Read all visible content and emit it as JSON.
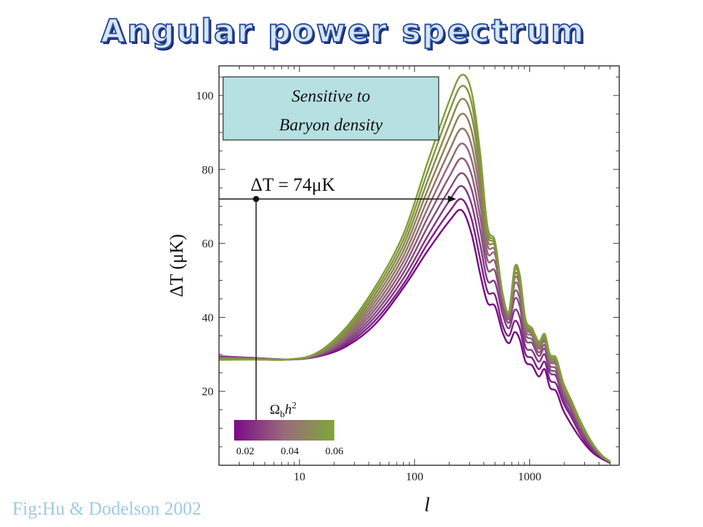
{
  "slide": {
    "title": "Angular power spectrum",
    "caption": "Fig:Hu & Dodelson 2002"
  },
  "chart_data": {
    "type": "line",
    "title": "",
    "xlabel": "l",
    "ylabel": "ΔT (μK)",
    "x_scale": "log",
    "xlim": [
      2,
      6000
    ],
    "ylim": [
      0,
      108
    ],
    "x_tick_labels": [
      "10",
      "100",
      "1000"
    ],
    "x_ticks": [
      10,
      100,
      1000
    ],
    "y_tick_labels": [
      "20",
      "40",
      "60",
      "80",
      "100"
    ],
    "y_ticks": [
      20,
      40,
      60,
      80,
      100
    ],
    "grid": false,
    "annotation_box": {
      "line1": "Sensitive to",
      "line2": "Baryon density",
      "fill": "#b7e0e3"
    },
    "equation": {
      "lhs": "ΔT",
      "eq": "=",
      "rhs": "74μK",
      "value_y": 72,
      "marker_x": 4.2,
      "arrow_to_x": 230
    },
    "colorbar": {
      "label_base": "Ω",
      "label_sub": "b",
      "label_tail": "h",
      "label_sup": "2",
      "tick_labels": [
        "0.02",
        "0.04",
        "0.06"
      ],
      "ticks": [
        0.02,
        0.04,
        0.06
      ],
      "range": [
        0.015,
        0.06
      ],
      "color_low": "#7a0c86",
      "color_mid": "#9a6a7a",
      "color_high": "#7fa63a"
    },
    "x_points": [
      2,
      4,
      8,
      14,
      25,
      45,
      80,
      130,
      200,
      255,
      310,
      370,
      430,
      500,
      580,
      660,
      740,
      820,
      920,
      1050,
      1200,
      1350,
      1500,
      1700,
      1950,
      2300,
      2800,
      3500,
      4200,
      5000
    ],
    "series": [
      {
        "omega_b": 0.015,
        "color": "#7a0c86",
        "values": [
          29.5,
          29.0,
          28.6,
          29.3,
          32.0,
          38.0,
          48.0,
          58.0,
          66.0,
          69.0,
          63.0,
          52.0,
          44.0,
          43.0,
          36.0,
          33.0,
          36.0,
          34.0,
          28.0,
          27.0,
          24.0,
          26.0,
          21.0,
          20.0,
          15.0,
          11.0,
          7.0,
          3.5,
          1.8,
          0.6
        ]
      },
      {
        "omega_b": 0.018,
        "color": "#7e2386",
        "values": [
          29.4,
          29.0,
          28.6,
          29.4,
          32.5,
          39.0,
          49.0,
          60.0,
          68.5,
          72.0,
          67.0,
          56.0,
          47.0,
          46.0,
          38.0,
          35.0,
          39.0,
          37.0,
          30.0,
          29.0,
          26.0,
          28.0,
          23.0,
          22.0,
          17.0,
          13.0,
          8.0,
          4.0,
          2.0,
          0.7
        ]
      },
      {
        "omega_b": 0.021,
        "color": "#833a84",
        "values": [
          29.3,
          28.9,
          28.6,
          29.5,
          33.0,
          40.0,
          50.5,
          62.0,
          71.5,
          75.5,
          71.0,
          60.0,
          50.0,
          49.5,
          41.0,
          37.0,
          42.0,
          40.0,
          32.0,
          31.0,
          28.0,
          30.0,
          25.0,
          24.0,
          18.0,
          14.0,
          9.0,
          4.5,
          2.2,
          0.8
        ]
      },
      {
        "omega_b": 0.024,
        "color": "#884c80",
        "values": [
          29.2,
          28.9,
          28.6,
          29.6,
          33.5,
          41.0,
          52.0,
          64.5,
          74.5,
          79.0,
          75.0,
          64.0,
          53.0,
          52.5,
          43.0,
          38.5,
          45.0,
          43.0,
          34.0,
          33.0,
          29.5,
          31.5,
          26.0,
          25.0,
          19.0,
          15.0,
          9.5,
          5.0,
          2.4,
          0.8
        ]
      },
      {
        "omega_b": 0.027,
        "color": "#8d5c7c",
        "values": [
          29.1,
          28.9,
          28.6,
          29.7,
          34.0,
          42.0,
          53.5,
          67.0,
          78.0,
          83.0,
          79.0,
          67.5,
          55.5,
          55.0,
          44.5,
          39.5,
          47.0,
          45.0,
          35.5,
          34.0,
          30.5,
          32.5,
          27.0,
          26.0,
          20.0,
          15.5,
          10.0,
          5.2,
          2.5,
          0.9
        ]
      },
      {
        "omega_b": 0.03,
        "color": "#916a77",
        "values": [
          29.0,
          28.8,
          28.6,
          29.8,
          34.5,
          43.0,
          55.0,
          69.5,
          81.5,
          87.0,
          83.0,
          71.0,
          57.5,
          57.0,
          45.5,
          40.0,
          49.0,
          47.0,
          36.5,
          35.0,
          31.5,
          33.5,
          28.0,
          27.0,
          20.5,
          16.0,
          10.5,
          5.5,
          2.6,
          0.9
        ]
      },
      {
        "omega_b": 0.034,
        "color": "#907568",
        "values": [
          28.9,
          28.8,
          28.6,
          29.9,
          35.0,
          44.0,
          56.5,
          72.0,
          85.0,
          91.0,
          87.0,
          74.0,
          59.5,
          58.0,
          46.0,
          40.5,
          50.5,
          48.5,
          37.5,
          35.5,
          32.0,
          34.0,
          28.5,
          27.5,
          21.0,
          16.5,
          10.5,
          5.5,
          2.6,
          0.9
        ]
      },
      {
        "omega_b": 0.038,
        "color": "#8f8058",
        "values": [
          28.8,
          28.7,
          28.6,
          30.0,
          35.5,
          45.0,
          58.0,
          74.5,
          88.5,
          95.0,
          91.0,
          77.0,
          61.0,
          59.0,
          46.5,
          41.0,
          51.5,
          49.5,
          38.0,
          36.0,
          32.5,
          34.5,
          29.0,
          28.0,
          21.5,
          17.0,
          11.0,
          5.8,
          2.7,
          0.9
        ]
      },
      {
        "omega_b": 0.043,
        "color": "#8a8a4a",
        "values": [
          28.7,
          28.7,
          28.6,
          30.1,
          36.0,
          46.0,
          59.5,
          77.0,
          92.0,
          99.0,
          95.0,
          80.0,
          62.5,
          59.5,
          46.5,
          41.5,
          52.5,
          50.5,
          38.5,
          36.5,
          33.0,
          35.0,
          29.5,
          28.5,
          22.0,
          17.0,
          11.0,
          5.8,
          2.7,
          0.9
        ]
      },
      {
        "omega_b": 0.048,
        "color": "#859540",
        "values": [
          28.6,
          28.6,
          28.6,
          30.2,
          36.5,
          47.0,
          61.0,
          79.5,
          95.5,
          102.5,
          98.5,
          82.5,
          63.5,
          60.0,
          46.5,
          41.5,
          53.0,
          51.0,
          39.0,
          37.0,
          33.0,
          35.0,
          29.5,
          28.5,
          22.0,
          17.5,
          11.5,
          6.0,
          2.8,
          1.0
        ]
      },
      {
        "omega_b": 0.055,
        "color": "#80a03a",
        "values": [
          28.5,
          28.6,
          28.6,
          30.3,
          37.0,
          48.0,
          62.5,
          82.0,
          98.5,
          105.5,
          101.5,
          85.0,
          64.5,
          60.5,
          46.5,
          41.5,
          53.5,
          51.5,
          39.5,
          37.0,
          33.5,
          35.5,
          30.0,
          29.0,
          22.5,
          17.5,
          11.5,
          6.0,
          2.8,
          1.0
        ]
      }
    ]
  }
}
